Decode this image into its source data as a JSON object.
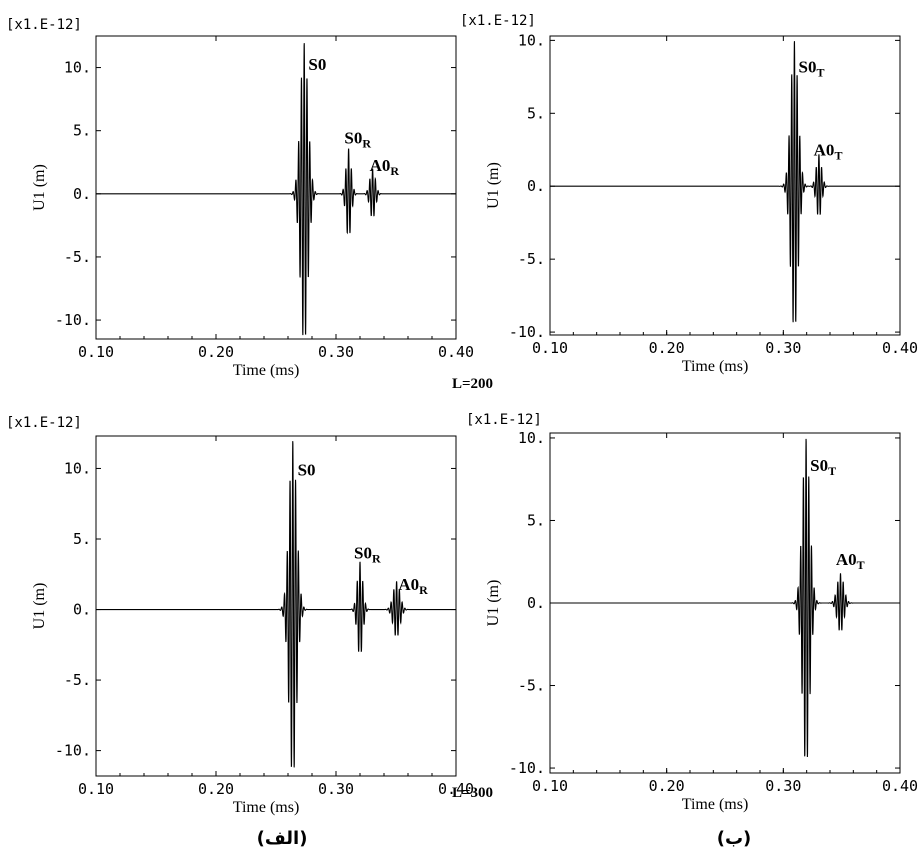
{
  "figure": {
    "row_labels": [
      "L=200",
      "L=300"
    ],
    "column_labels": [
      "(الف)",
      "(ب)"
    ]
  },
  "chart_data": [
    {
      "type": "line",
      "panel": "top-left",
      "scale_label": "[x1.E-12]",
      "xlabel": "Time (ms)",
      "ylabel": "U1 (m)",
      "xlim": [
        0.1,
        0.4
      ],
      "ylim": [
        -11.5,
        12.5
      ],
      "xticks": [
        "0.10",
        "0.20",
        "0.30",
        "0.40"
      ],
      "yticks": [
        "10.",
        "5.",
        "0.",
        "-5.",
        "-10."
      ],
      "ytick_values": [
        10,
        5,
        0,
        -5,
        -10
      ],
      "packets": [
        {
          "center": 0.2735,
          "amp": 12.0,
          "width": 0.0045,
          "freq": 430,
          "label": "S0",
          "label_t": 0.277,
          "label_y": 9.8
        },
        {
          "center": 0.3105,
          "amp": 3.6,
          "width": 0.003,
          "freq": 430,
          "label": "S0",
          "sub": "R",
          "label_t": 0.307,
          "label_y": 4.0
        },
        {
          "center": 0.3305,
          "amp": 2.0,
          "width": 0.0032,
          "freq": 430,
          "label": "A0",
          "sub": "R",
          "label_t": 0.328,
          "label_y": 1.8
        }
      ],
      "grid": false
    },
    {
      "type": "line",
      "panel": "top-right",
      "scale_label": "[x1.E-12]",
      "xlabel": "Time (ms)",
      "ylabel": "U1 (m)",
      "xlim": [
        0.1,
        0.4
      ],
      "ylim": [
        -10.2,
        10.3
      ],
      "xticks": [
        "0.10",
        "0.20",
        "0.30",
        "0.40"
      ],
      "yticks": [
        "10.",
        "5.",
        "0.",
        "-5.",
        "-10."
      ],
      "ytick_values": [
        10,
        5,
        0,
        -5,
        -10
      ],
      "packets": [
        {
          "center": 0.3095,
          "amp": 10.0,
          "width": 0.0045,
          "freq": 430,
          "label": "S0",
          "sub": "T",
          "label_t": 0.313,
          "label_y": 7.8
        },
        {
          "center": 0.3305,
          "amp": 2.2,
          "width": 0.0032,
          "freq": 430,
          "label": "A0",
          "sub": "T",
          "label_t": 0.326,
          "label_y": 2.1
        }
      ],
      "grid": false
    },
    {
      "type": "line",
      "panel": "bottom-left",
      "scale_label": "[x1.E-12]",
      "xlabel": "Time (ms)",
      "ylabel": "U1 (m)",
      "xlim": [
        0.1,
        0.4
      ],
      "ylim": [
        -11.8,
        12.3
      ],
      "xticks": [
        "0.10",
        "0.20",
        "0.30",
        "0.40"
      ],
      "yticks": [
        "10.",
        "5.",
        "0.",
        "-5.",
        "-10."
      ],
      "ytick_values": [
        10,
        5,
        0,
        -5,
        -10
      ],
      "packets": [
        {
          "center": 0.264,
          "amp": 12.0,
          "width": 0.0045,
          "freq": 430,
          "label": "S0",
          "label_t": 0.268,
          "label_y": 9.5
        },
        {
          "center": 0.32,
          "amp": 3.4,
          "width": 0.0032,
          "freq": 430,
          "label": "S0",
          "sub": "R",
          "label_t": 0.315,
          "label_y": 3.6
        },
        {
          "center": 0.3505,
          "amp": 2.0,
          "width": 0.004,
          "freq": 430,
          "label": "A0",
          "sub": "R",
          "label_t": 0.352,
          "label_y": 1.4
        }
      ],
      "grid": false
    },
    {
      "type": "line",
      "panel": "bottom-right",
      "scale_label": "[x1.E-12]",
      "xlabel": "Time (ms)",
      "ylabel": "U1 (m)",
      "xlim": [
        0.1,
        0.4
      ],
      "ylim": [
        -10.3,
        10.3
      ],
      "xticks": [
        "0.10",
        "0.20",
        "0.30",
        "0.40"
      ],
      "yticks": [
        "10.",
        "5.",
        "0.",
        "-5.",
        "-10."
      ],
      "ytick_values": [
        10,
        5,
        0,
        -5,
        -10
      ],
      "packets": [
        {
          "center": 0.3195,
          "amp": 10.0,
          "width": 0.0045,
          "freq": 430,
          "label": "S0",
          "sub": "T",
          "label_t": 0.323,
          "label_y": 8.0
        },
        {
          "center": 0.349,
          "amp": 1.8,
          "width": 0.004,
          "freq": 430,
          "label": "A0",
          "sub": "T",
          "label_t": 0.345,
          "label_y": 2.3
        }
      ],
      "grid": false
    }
  ]
}
